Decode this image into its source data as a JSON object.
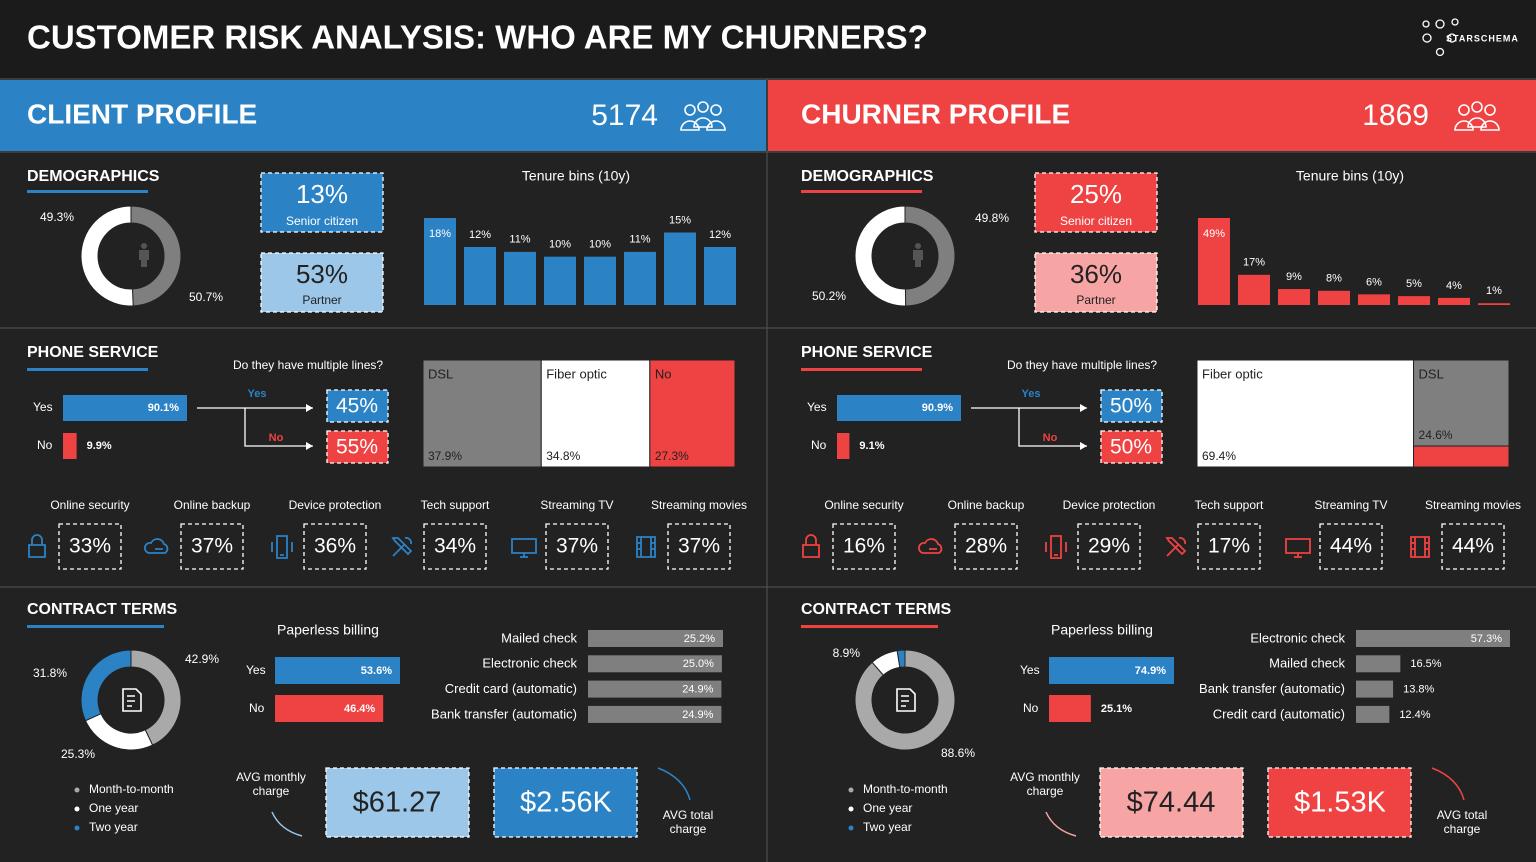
{
  "header": {
    "title": "CUSTOMER RISK ANALYSIS: WHO ARE MY CHURNERS?",
    "logo": "STARSCHEMA"
  },
  "panels": [
    {
      "title": "CLIENT PROFILE",
      "count": 5174,
      "color": "#2b83c6",
      "light_color": "#9cc7e8",
      "demographics": {
        "heading": "DEMOGRAPHICS",
        "gender": {
          "values": [
            49.3,
            50.7
          ],
          "value_labels": [
            "49.3%",
            "50.7%"
          ],
          "colors": [
            "#7f7f7f",
            "#ffffff"
          ]
        },
        "senior": {
          "value": 13,
          "value_label": "13%",
          "label": "Senior citizen"
        },
        "partner": {
          "value": 53,
          "value_label": "53%",
          "label": "Partner"
        },
        "tenure": {
          "title": "Tenure bins (10y)",
          "values": [
            18,
            12,
            11,
            10,
            10,
            11,
            15,
            12
          ],
          "value_labels": [
            "18%",
            "12%",
            "11%",
            "10%",
            "10%",
            "11%",
            "15%",
            "12%"
          ]
        }
      },
      "phone": {
        "heading": "PHONE SERVICE",
        "service": {
          "categories": [
            "Yes",
            "No"
          ],
          "values": [
            90.1,
            9.9
          ],
          "value_labels": [
            "90.1%",
            "9.9%"
          ],
          "colors": [
            "#2b83c6",
            "#ef4242"
          ]
        },
        "multiple_lines": {
          "question": "Do they have multiple lines?",
          "categories": [
            "Yes",
            "No"
          ],
          "values": [
            45,
            55
          ],
          "value_labels": [
            "45%",
            "55%"
          ],
          "colors": [
            "#2b83c6",
            "#ef4242"
          ]
        },
        "internet": {
          "categories": [
            "DSL",
            "Fiber optic",
            "No"
          ],
          "values": [
            37.9,
            34.8,
            27.3
          ],
          "value_labels": [
            "37.9%",
            "34.8%",
            "27.3%"
          ],
          "colors": [
            "#7f7f7f",
            "#ffffff",
            "#ef4242"
          ]
        },
        "services": {
          "categories": [
            "Online security",
            "Online backup",
            "Device protection",
            "Tech support",
            "Streaming TV",
            "Streaming movies"
          ],
          "values": [
            33,
            37,
            36,
            34,
            37,
            37
          ],
          "value_labels": [
            "33%",
            "37%",
            "36%",
            "34%",
            "37%",
            "37%"
          ]
        }
      },
      "contract": {
        "heading": "CONTRACT TERMS",
        "terms": {
          "categories": [
            "Month-to-month",
            "One year",
            "Two year"
          ],
          "values": [
            42.9,
            25.3,
            31.8
          ],
          "value_labels": [
            "42.9%",
            "25.3%",
            "31.8%"
          ],
          "colors": [
            "#a9a9a9",
            "#ffffff",
            "#2b83c6"
          ]
        },
        "paperless": {
          "title": "Paperless billing",
          "categories": [
            "Yes",
            "No"
          ],
          "values": [
            53.6,
            46.4
          ],
          "value_labels": [
            "53.6%",
            "46.4%"
          ],
          "colors": [
            "#2b83c6",
            "#ef4242"
          ]
        },
        "payment": {
          "categories": [
            "Mailed check",
            "Electronic check",
            "Credit card (automatic)",
            "Bank transfer (automatic)"
          ],
          "values": [
            25.2,
            25.0,
            24.9,
            24.9
          ],
          "value_labels": [
            "25.2%",
            "25.0%",
            "24.9%",
            "24.9%"
          ],
          "color": "#7f7f7f"
        },
        "avg_monthly": {
          "label": "AVG monthly charge",
          "value": 61.27,
          "value_label": "$61.27"
        },
        "avg_total": {
          "label": "AVG total charge",
          "value": 2560,
          "value_label": "$2.56K"
        }
      }
    },
    {
      "title": "CHURNER PROFILE",
      "count": 1869,
      "color": "#ef4242",
      "light_color": "#f6a4a4",
      "demographics": {
        "heading": "DEMOGRAPHICS",
        "gender": {
          "values": [
            49.8,
            50.2
          ],
          "value_labels": [
            "49.8%",
            "50.2%"
          ],
          "colors": [
            "#7f7f7f",
            "#ffffff"
          ]
        },
        "senior": {
          "value": 25,
          "value_label": "25%",
          "label": "Senior citizen"
        },
        "partner": {
          "value": 36,
          "value_label": "36%",
          "label": "Partner"
        },
        "tenure": {
          "title": "Tenure bins (10y)",
          "values": [
            49,
            17,
            9,
            8,
            6,
            5,
            4,
            1
          ],
          "value_labels": [
            "49%",
            "17%",
            "9%",
            "8%",
            "6%",
            "5%",
            "4%",
            "1%"
          ]
        }
      },
      "phone": {
        "heading": "PHONE SERVICE",
        "service": {
          "categories": [
            "Yes",
            "No"
          ],
          "values": [
            90.9,
            9.1
          ],
          "value_labels": [
            "90.9%",
            "9.1%"
          ],
          "colors": [
            "#2b83c6",
            "#ef4242"
          ]
        },
        "multiple_lines": {
          "question": "Do they have multiple lines?",
          "categories": [
            "Yes",
            "No"
          ],
          "values": [
            50,
            50
          ],
          "value_labels": [
            "50%",
            "50%"
          ],
          "colors": [
            "#2b83c6",
            "#ef4242"
          ]
        },
        "internet": {
          "categories": [
            "Fiber optic",
            "DSL",
            null
          ],
          "values": [
            69.4,
            24.6,
            6.0
          ],
          "value_labels": [
            "69.4%",
            "24.6%",
            null
          ],
          "colors": [
            "#ffffff",
            "#7f7f7f",
            "#ef4242"
          ]
        },
        "services": {
          "categories": [
            "Online security",
            "Online backup",
            "Device protection",
            "Tech support",
            "Streaming TV",
            "Streaming movies"
          ],
          "values": [
            16,
            28,
            29,
            17,
            44,
            44
          ],
          "value_labels": [
            "16%",
            "28%",
            "29%",
            "17%",
            "44%",
            "44%"
          ]
        }
      },
      "contract": {
        "heading": "CONTRACT TERMS",
        "terms": {
          "categories": [
            "Month-to-month",
            "One year",
            "Two year"
          ],
          "values": [
            88.6,
            8.9,
            2.5
          ],
          "value_labels": [
            "88.6%",
            "8.9%",
            null
          ],
          "colors": [
            "#a9a9a9",
            "#ffffff",
            "#2b83c6"
          ]
        },
        "paperless": {
          "title": "Paperless billing",
          "categories": [
            "Yes",
            "No"
          ],
          "values": [
            74.9,
            25.1
          ],
          "value_labels": [
            "74.9%",
            "25.1%"
          ],
          "colors": [
            "#2b83c6",
            "#ef4242"
          ]
        },
        "payment": {
          "categories": [
            "Electronic check",
            "Mailed check",
            "Bank transfer (automatic)",
            "Credit card (automatic)"
          ],
          "values": [
            57.3,
            16.5,
            13.8,
            12.4
          ],
          "value_labels": [
            "57.3%",
            "16.5%",
            "13.8%",
            "12.4%"
          ],
          "color": "#7f7f7f"
        },
        "avg_monthly": {
          "label": "AVG monthly charge",
          "value": 74.44,
          "value_label": "$74.44"
        },
        "avg_total": {
          "label": "AVG total charge",
          "value": 1530,
          "value_label": "$1.53K"
        }
      }
    }
  ]
}
